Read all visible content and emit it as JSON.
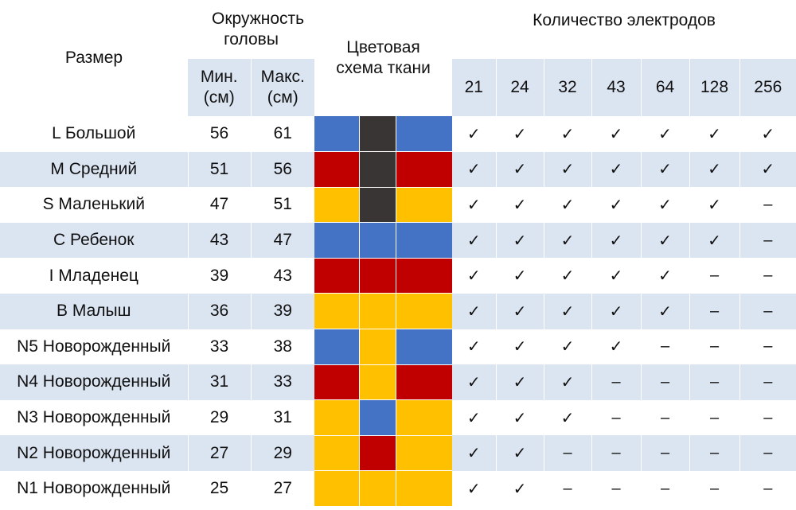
{
  "headers": {
    "size": "Размер",
    "circumference": "Окружность головы",
    "min": "Мин. (см)",
    "max": "Макс. (см)",
    "color_scheme": "Цветовая схема ткани",
    "electrodes": "Количество электродов",
    "electrode_counts": [
      "21",
      "24",
      "32",
      "43",
      "64",
      "128",
      "256"
    ]
  },
  "colors": {
    "blue": "#4472c4",
    "dark": "#3a3535",
    "red": "#c00000",
    "yellow": "#ffc000",
    "row_band": "#dbe4f1"
  },
  "rows": [
    {
      "size": "L Большой",
      "min": "56",
      "max": "61",
      "swatch": [
        "blue",
        "dark",
        "blue"
      ],
      "marks": [
        "✓",
        "✓",
        "✓",
        "✓",
        "✓",
        "✓",
        "✓"
      ]
    },
    {
      "size": "M Средний",
      "min": "51",
      "max": "56",
      "swatch": [
        "red",
        "dark",
        "red"
      ],
      "marks": [
        "✓",
        "✓",
        "✓",
        "✓",
        "✓",
        "✓",
        "✓"
      ]
    },
    {
      "size": "S Маленький",
      "min": "47",
      "max": "51",
      "swatch": [
        "yellow",
        "dark",
        "yellow"
      ],
      "marks": [
        "✓",
        "✓",
        "✓",
        "✓",
        "✓",
        "✓",
        "–"
      ]
    },
    {
      "size": "C Ребенок",
      "min": "43",
      "max": "47",
      "swatch": [
        "blue",
        "blue",
        "blue"
      ],
      "marks": [
        "✓",
        "✓",
        "✓",
        "✓",
        "✓",
        "✓",
        "–"
      ]
    },
    {
      "size": "I Младенец",
      "min": "39",
      "max": "43",
      "swatch": [
        "red",
        "red",
        "red"
      ],
      "marks": [
        "✓",
        "✓",
        "✓",
        "✓",
        "✓",
        "–",
        "–"
      ]
    },
    {
      "size": "B Малыш",
      "min": "36",
      "max": "39",
      "swatch": [
        "yellow",
        "yellow",
        "yellow"
      ],
      "marks": [
        "✓",
        "✓",
        "✓",
        "✓",
        "✓",
        "–",
        "–"
      ]
    },
    {
      "size": "N5 Новорожденный",
      "min": "33",
      "max": "38",
      "swatch": [
        "blue",
        "yellow",
        "blue"
      ],
      "marks": [
        "✓",
        "✓",
        "✓",
        "✓",
        "–",
        "–",
        "–"
      ]
    },
    {
      "size": "N4 Новорожденный",
      "min": "31",
      "max": "33",
      "swatch": [
        "red",
        "yellow",
        "red"
      ],
      "marks": [
        "✓",
        "✓",
        "✓",
        "–",
        "–",
        "–",
        "–"
      ]
    },
    {
      "size": "N3 Новорожденный",
      "min": "29",
      "max": "31",
      "swatch": [
        "yellow",
        "blue",
        "yellow"
      ],
      "marks": [
        "✓",
        "✓",
        "✓",
        "–",
        "–",
        "–",
        "–"
      ]
    },
    {
      "size": "N2 Новорожденный",
      "min": "27",
      "max": "29",
      "swatch": [
        "yellow",
        "red",
        "yellow"
      ],
      "marks": [
        "✓",
        "✓",
        "–",
        "–",
        "–",
        "–",
        "–"
      ]
    },
    {
      "size": "N1 Новорожденный",
      "min": "25",
      "max": "27",
      "swatch": [
        "yellow",
        "yellow",
        "yellow"
      ],
      "marks": [
        "✓",
        "✓",
        "–",
        "–",
        "–",
        "–",
        "–"
      ]
    }
  ]
}
